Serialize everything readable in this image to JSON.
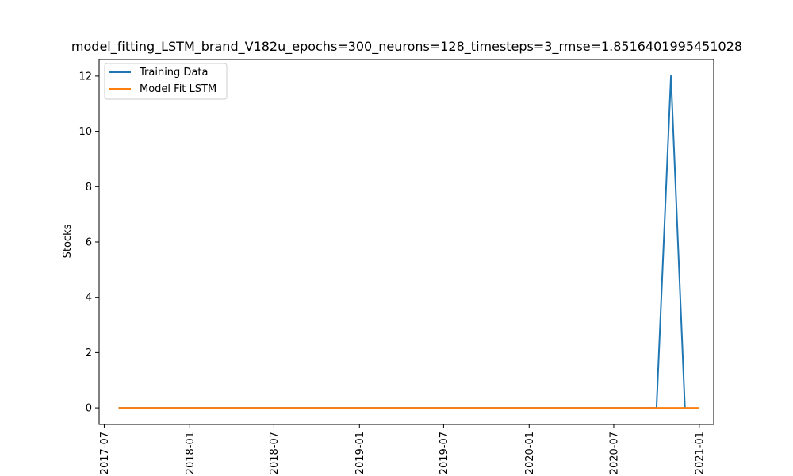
{
  "chart_data": {
    "type": "line",
    "title": "model_fitting_LSTM_brand_V182u_epochs=300_neurons=128_timesteps=3_rmse=1.8516401995451028",
    "xlabel": "",
    "ylabel": "Stocks",
    "x_ticks": [
      "2017-07",
      "2018-01",
      "2018-07",
      "2019-01",
      "2019-07",
      "2020-01",
      "2020-07",
      "2021-01"
    ],
    "y_ticks": [
      0,
      2,
      4,
      6,
      8,
      10,
      12
    ],
    "xlim": [
      "2017-06-20",
      "2021-02-01"
    ],
    "ylim": [
      -0.6,
      12.6
    ],
    "grid": false,
    "legend_position": "top-left",
    "series": [
      {
        "name": "Training Data",
        "color": "#1f77b4",
        "points": [
          {
            "x": "2017-08-01",
            "y": 0
          },
          {
            "x": "2020-10-01",
            "y": 0
          },
          {
            "x": "2020-11-01",
            "y": 12
          },
          {
            "x": "2020-12-01",
            "y": 0
          }
        ]
      },
      {
        "name": "Model Fit LSTM",
        "color": "#ff7f0e",
        "points": [
          {
            "x": "2017-08-01",
            "y": 0
          },
          {
            "x": "2020-12-31",
            "y": 0
          }
        ]
      }
    ]
  }
}
